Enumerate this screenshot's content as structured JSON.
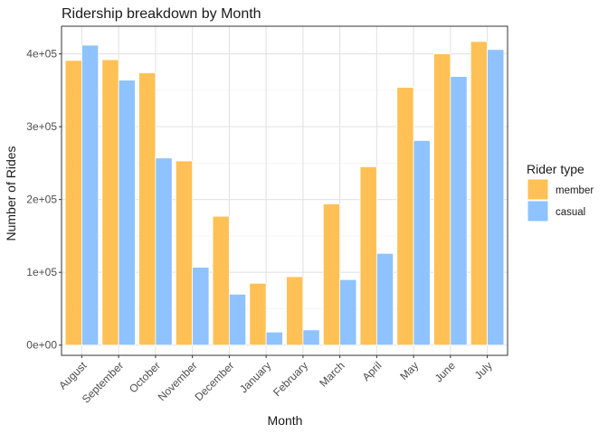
{
  "chart_data": {
    "type": "bar",
    "title": "Ridership breakdown by Month",
    "xlabel": "Month",
    "ylabel": "Number of Rides",
    "categories": [
      "August",
      "September",
      "October",
      "November",
      "December",
      "January",
      "February",
      "March",
      "April",
      "May",
      "June",
      "July"
    ],
    "series": [
      {
        "name": "member",
        "color": "#FFC155",
        "values": [
          391000,
          392000,
          374000,
          253000,
          177000,
          85000,
          94000,
          194000,
          245000,
          354000,
          400000,
          417000
        ]
      },
      {
        "name": "casual",
        "color": "#8EC3FF",
        "values": [
          412000,
          364000,
          257000,
          107000,
          70000,
          18000,
          21000,
          90000,
          126000,
          281000,
          369000,
          406000
        ]
      }
    ],
    "ylim": [
      -14000,
      438000
    ],
    "yticks": [
      0,
      100000,
      200000,
      300000,
      400000
    ],
    "ytick_labels": [
      "0e+00",
      "1e+05",
      "2e+05",
      "3e+05",
      "4e+05"
    ],
    "legend": {
      "title": "Rider type",
      "position": "right"
    },
    "grid": true
  }
}
